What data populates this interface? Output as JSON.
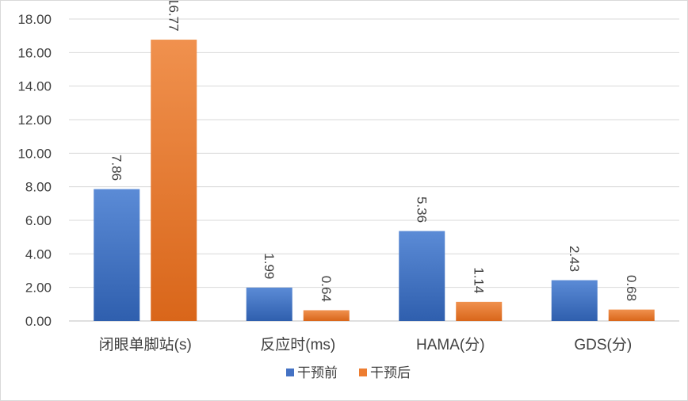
{
  "chart_data": {
    "type": "bar",
    "categories": [
      "闭眼单脚站(s)",
      "反应时(ms)",
      "HAMA(分)",
      "GDS(分)"
    ],
    "series": [
      {
        "name": "干预前",
        "color": "#4472c4",
        "values": [
          7.86,
          1.99,
          5.36,
          2.43
        ],
        "labels": [
          "7.86",
          "1.99",
          "5.36",
          "2.43"
        ]
      },
      {
        "name": "干预后",
        "color": "#ed7d31",
        "values": [
          16.77,
          0.64,
          1.14,
          0.68
        ],
        "labels": [
          "16.77",
          "0.64",
          "1.14",
          "0.68"
        ]
      }
    ],
    "ylim": [
      0,
      18
    ],
    "yticks": [
      "0.00",
      "2.00",
      "4.00",
      "6.00",
      "8.00",
      "10.00",
      "12.00",
      "14.00",
      "16.00",
      "18.00"
    ],
    "grid": true,
    "legend_position": "bottom",
    "title": "",
    "xlabel": "",
    "ylabel": ""
  }
}
